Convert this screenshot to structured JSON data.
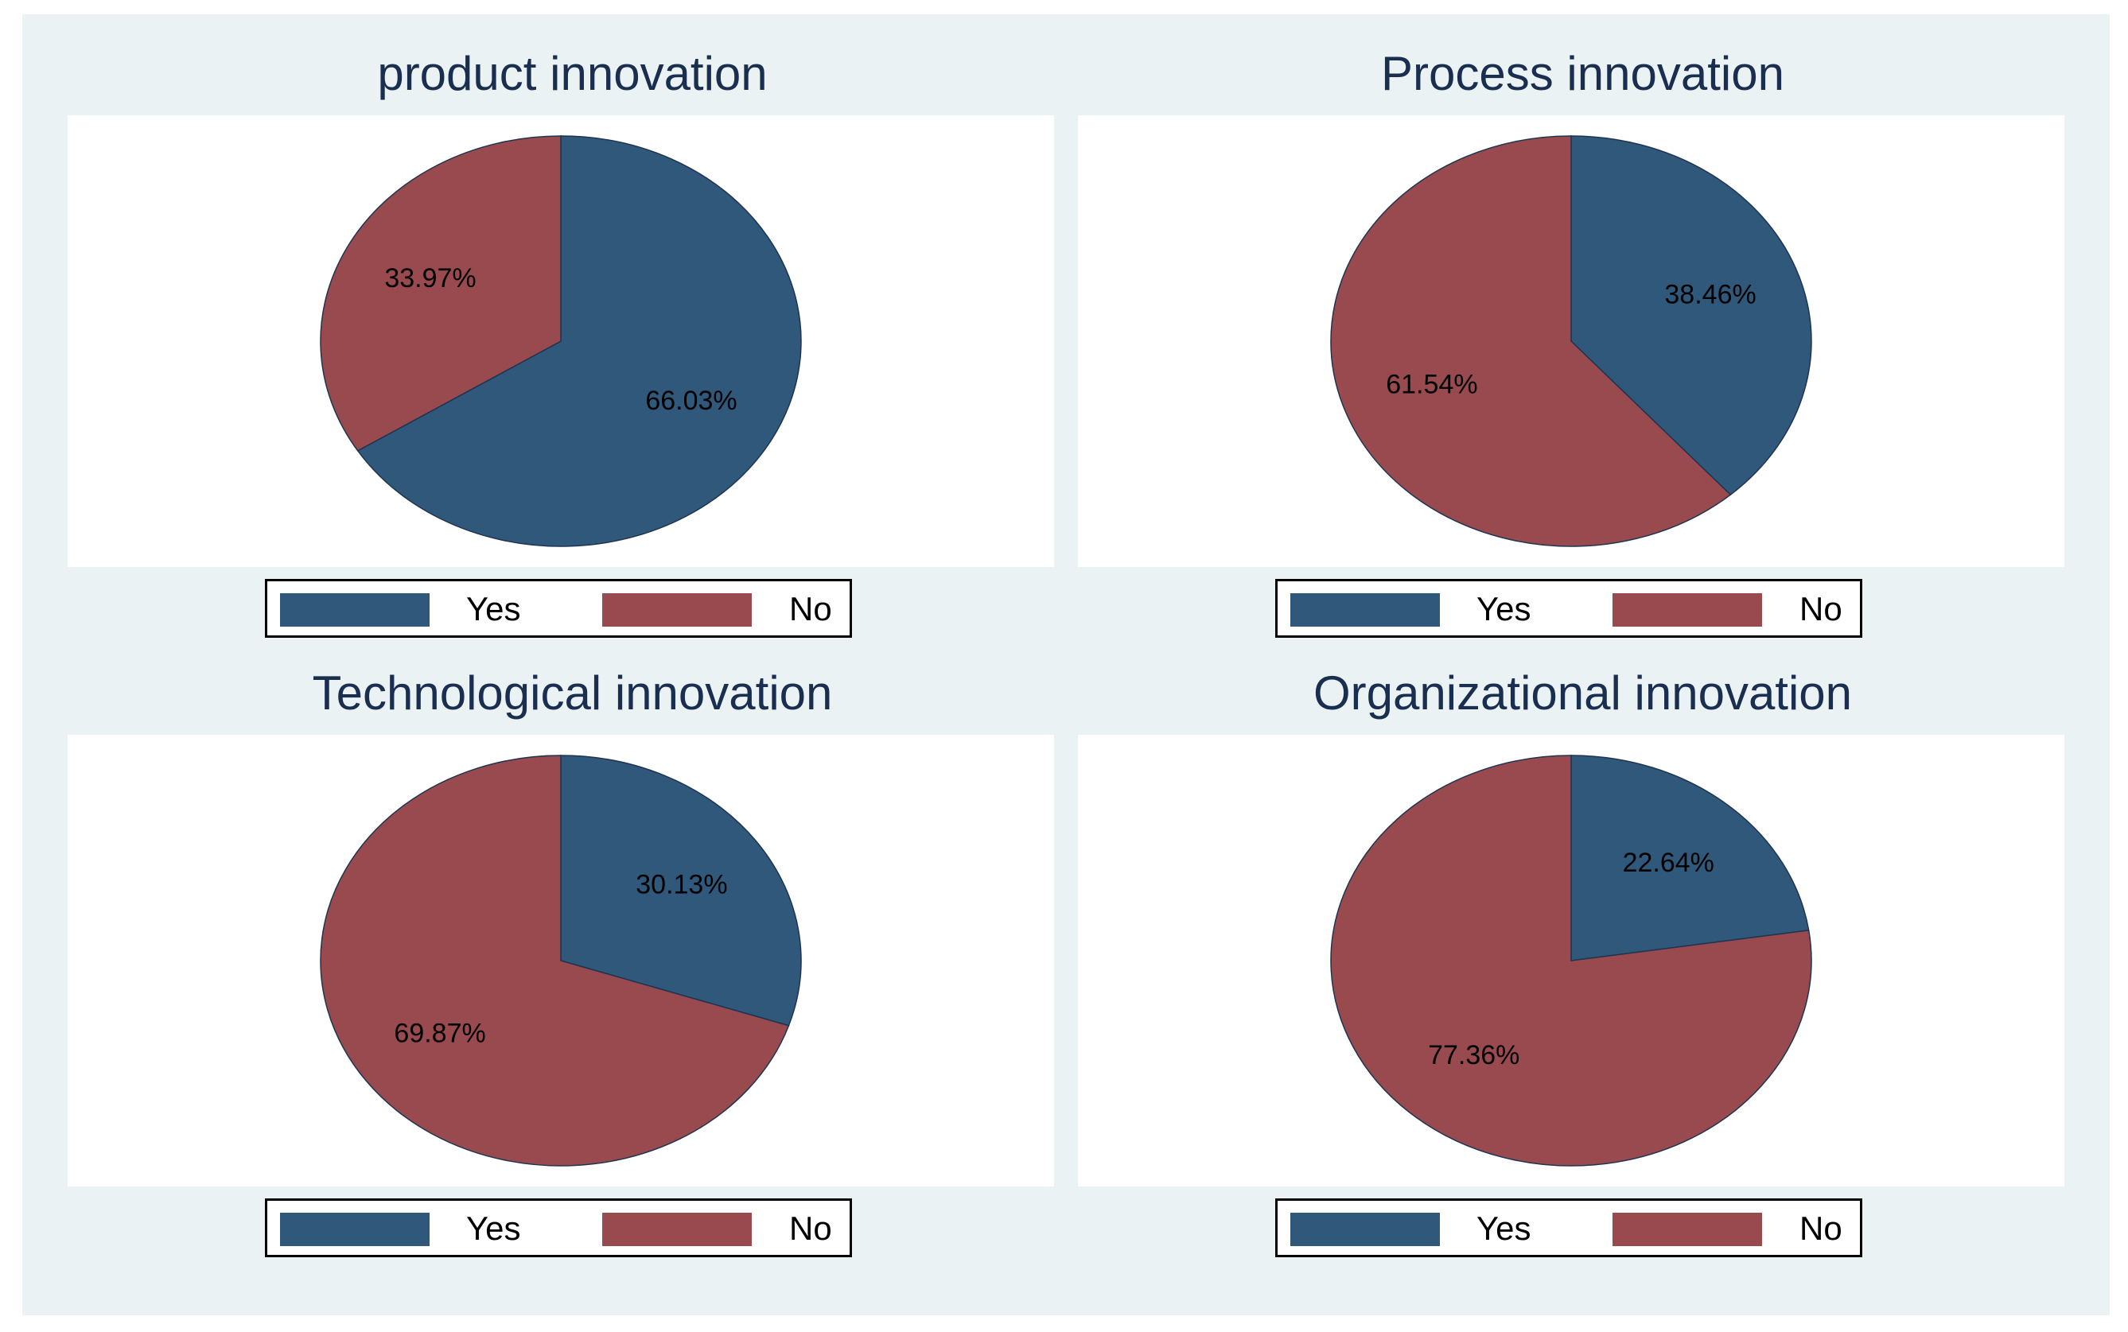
{
  "colors": {
    "yes": "#30587a",
    "no": "#994a4f",
    "background": "#eaf2f3",
    "title": "#1a2e50"
  },
  "legend": {
    "yes_label": "Yes",
    "no_label": "No"
  },
  "chart_data": [
    {
      "type": "pie",
      "title": "product innovation",
      "slices": [
        {
          "label": "Yes",
          "value": 66.03,
          "text": "66.03%"
        },
        {
          "label": "No",
          "value": 33.97,
          "text": "33.97%"
        }
      ]
    },
    {
      "type": "pie",
      "title": "Process innovation",
      "slices": [
        {
          "label": "Yes",
          "value": 38.46,
          "text": "38.46%"
        },
        {
          "label": "No",
          "value": 61.54,
          "text": "61.54%"
        }
      ]
    },
    {
      "type": "pie",
      "title": "Technological innovation",
      "slices": [
        {
          "label": "Yes",
          "value": 30.13,
          "text": "30.13%"
        },
        {
          "label": "No",
          "value": 69.87,
          "text": "69.87%"
        }
      ]
    },
    {
      "type": "pie",
      "title": "Organizational innovation",
      "slices": [
        {
          "label": "Yes",
          "value": 22.64,
          "text": "22.64%"
        },
        {
          "label": "No",
          "value": 77.36,
          "text": "77.36%"
        }
      ]
    }
  ]
}
